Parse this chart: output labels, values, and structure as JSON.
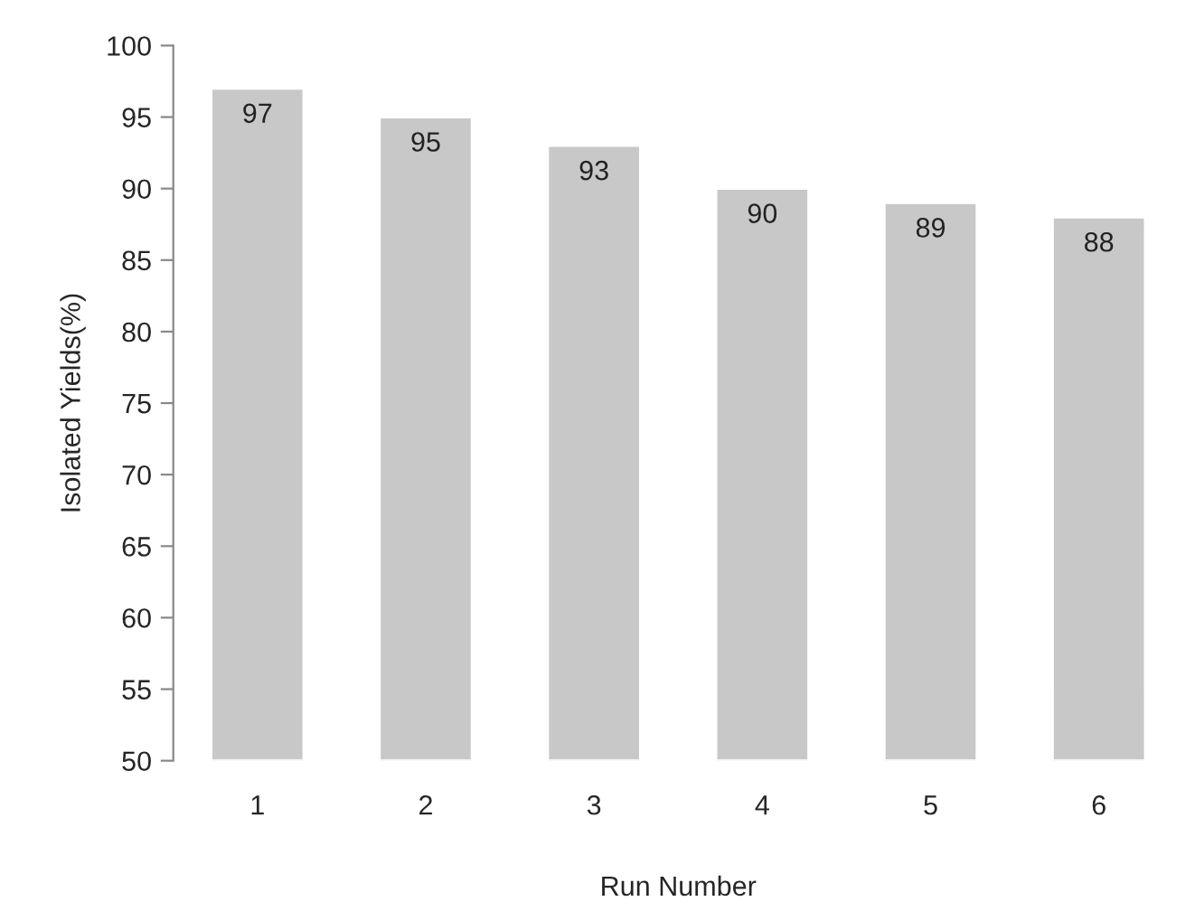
{
  "chart_data": {
    "type": "bar",
    "xlabel": "Run Number",
    "ylabel": "Isolated Yields(%)",
    "categories": [
      "1",
      "2",
      "3",
      "4",
      "5",
      "6"
    ],
    "values": [
      97,
      95,
      93,
      90,
      89,
      88
    ],
    "color": "#c8c8c8",
    "ylim": [
      50,
      100
    ],
    "yticks": [
      50,
      55,
      60,
      65,
      70,
      75,
      80,
      85,
      90,
      95,
      100
    ],
    "data_labels": true,
    "grid": false,
    "legend": false
  }
}
